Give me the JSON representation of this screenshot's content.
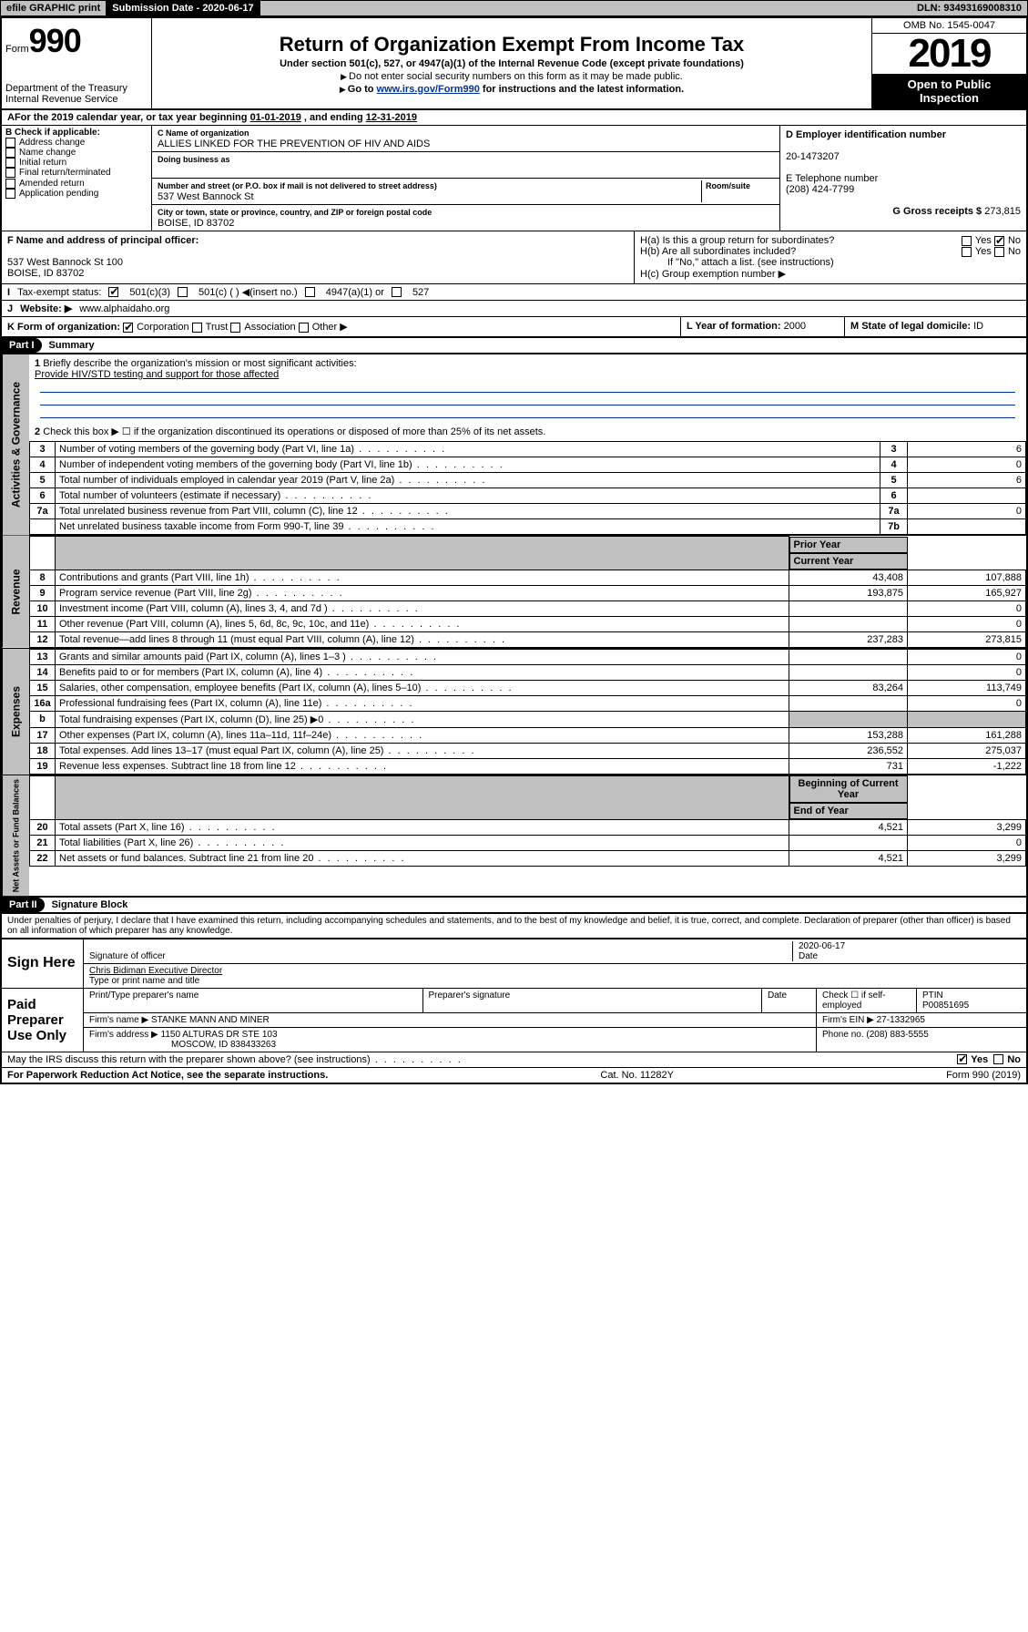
{
  "top": {
    "efile": "efile GRAPHIC print",
    "submission_label": "Submission Date - 2020-06-17",
    "dln": "DLN: 93493169008310"
  },
  "header": {
    "form_prefix": "Form",
    "form_no": "990",
    "dept": "Department of the Treasury",
    "irs": "Internal Revenue Service",
    "title": "Return of Organization Exempt From Income Tax",
    "subtitle": "Under section 501(c), 527, or 4947(a)(1) of the Internal Revenue Code (except private foundations)",
    "note1": "Do not enter social security numbers on this form as it may be made public.",
    "note2_pre": "Go to ",
    "note2_link": "www.irs.gov/Form990",
    "note2_post": " for instructions and the latest information.",
    "omb": "OMB No. 1545-0047",
    "year": "2019",
    "open1": "Open to Public",
    "open2": "Inspection"
  },
  "period": {
    "text_a": "For the 2019 calendar year, or tax year beginning ",
    "begin": "01-01-2019",
    "text_b": " , and ending ",
    "end": "12-31-2019"
  },
  "boxB": {
    "title": "B Check if applicable:",
    "opts": [
      "Address change",
      "Name change",
      "Initial return",
      "Final return/terminated",
      "Amended return",
      "Application pending"
    ]
  },
  "boxC": {
    "name_lbl": "C Name of organization",
    "name": "ALLIES LINKED FOR THE PREVENTION OF HIV AND AIDS",
    "dba_lbl": "Doing business as",
    "street_lbl": "Number and street (or P.O. box if mail is not delivered to street address)",
    "room_lbl": "Room/suite",
    "street": "537 West Bannock St",
    "city_lbl": "City or town, state or province, country, and ZIP or foreign postal code",
    "city": "BOISE, ID  83702"
  },
  "boxD": {
    "lbl": "D Employer identification number",
    "val": "20-1473207"
  },
  "boxE": {
    "lbl": "E Telephone number",
    "val": "(208) 424-7799"
  },
  "boxG": {
    "lbl": "G Gross receipts $",
    "val": "273,815"
  },
  "boxF": {
    "lbl": "F  Name and address of principal officer:",
    "line1": "537 West Bannock St 100",
    "line2": "BOISE, ID  83702"
  },
  "boxH": {
    "a_lbl": "H(a)  Is this a group return for subordinates?",
    "b_lbl": "H(b)  Are all subordinates included?",
    "b_note": "If \"No,\" attach a list. (see instructions)",
    "c_lbl": "H(c)  Group exemption number ▶",
    "yes": "Yes",
    "no": "No"
  },
  "boxI": {
    "lbl": "Tax-exempt status:",
    "o1": "501(c)(3)",
    "o2": "501(c) (  ) ◀(insert no.)",
    "o3": "4947(a)(1) or",
    "o4": "527"
  },
  "boxJ": {
    "lbl": "Website: ▶",
    "val": "www.alphaidaho.org"
  },
  "boxK": {
    "lbl": "K Form of organization:",
    "o1": "Corporation",
    "o2": "Trust",
    "o3": "Association",
    "o4": "Other ▶"
  },
  "boxL": {
    "lbl": "L Year of formation:",
    "val": "2000"
  },
  "boxM": {
    "lbl": "M State of legal domicile:",
    "val": "ID"
  },
  "part1": {
    "bar": "Part I",
    "title": "Summary"
  },
  "summary": {
    "q1": "Briefly describe the organization's mission or most significant activities:",
    "q1a": "Provide HIV/STD testing and support for those affected",
    "q2": "Check this box ▶ ☐  if the organization discontinued its operations or disposed of more than 25% of its net assets.",
    "rows_gov": [
      {
        "n": "3",
        "t": "Number of voting members of the governing body (Part VI, line 1a)",
        "b": "3",
        "v": "6"
      },
      {
        "n": "4",
        "t": "Number of independent voting members of the governing body (Part VI, line 1b)",
        "b": "4",
        "v": "0"
      },
      {
        "n": "5",
        "t": "Total number of individuals employed in calendar year 2019 (Part V, line 2a)",
        "b": "5",
        "v": "6"
      },
      {
        "n": "6",
        "t": "Total number of volunteers (estimate if necessary)",
        "b": "6",
        "v": ""
      },
      {
        "n": "7a",
        "t": "Total unrelated business revenue from Part VIII, column (C), line 12",
        "b": "7a",
        "v": "0"
      },
      {
        "n": "",
        "t": "Net unrelated business taxable income from Form 990-T, line 39",
        "b": "7b",
        "v": ""
      }
    ],
    "col_prior": "Prior Year",
    "col_curr": "Current Year",
    "col_begin": "Beginning of Current Year",
    "col_end": "End of Year",
    "rev": [
      {
        "n": "8",
        "t": "Contributions and grants (Part VIII, line 1h)",
        "p": "43,408",
        "c": "107,888"
      },
      {
        "n": "9",
        "t": "Program service revenue (Part VIII, line 2g)",
        "p": "193,875",
        "c": "165,927"
      },
      {
        "n": "10",
        "t": "Investment income (Part VIII, column (A), lines 3, 4, and 7d )",
        "p": "",
        "c": "0"
      },
      {
        "n": "11",
        "t": "Other revenue (Part VIII, column (A), lines 5, 6d, 8c, 9c, 10c, and 11e)",
        "p": "",
        "c": "0"
      },
      {
        "n": "12",
        "t": "Total revenue—add lines 8 through 11 (must equal Part VIII, column (A), line 12)",
        "p": "237,283",
        "c": "273,815"
      }
    ],
    "exp": [
      {
        "n": "13",
        "t": "Grants and similar amounts paid (Part IX, column (A), lines 1–3 )",
        "p": "",
        "c": "0"
      },
      {
        "n": "14",
        "t": "Benefits paid to or for members (Part IX, column (A), line 4)",
        "p": "",
        "c": "0"
      },
      {
        "n": "15",
        "t": "Salaries, other compensation, employee benefits (Part IX, column (A), lines 5–10)",
        "p": "83,264",
        "c": "113,749"
      },
      {
        "n": "16a",
        "t": "Professional fundraising fees (Part IX, column (A), line 11e)",
        "p": "",
        "c": "0"
      },
      {
        "n": "b",
        "t": "Total fundraising expenses (Part IX, column (D), line 25) ▶0",
        "p": "GRAY",
        "c": "GRAY"
      },
      {
        "n": "17",
        "t": "Other expenses (Part IX, column (A), lines 11a–11d, 11f–24e)",
        "p": "153,288",
        "c": "161,288"
      },
      {
        "n": "18",
        "t": "Total expenses. Add lines 13–17 (must equal Part IX, column (A), line 25)",
        "p": "236,552",
        "c": "275,037"
      },
      {
        "n": "19",
        "t": "Revenue less expenses. Subtract line 18 from line 12",
        "p": "731",
        "c": "-1,222"
      }
    ],
    "net": [
      {
        "n": "20",
        "t": "Total assets (Part X, line 16)",
        "p": "4,521",
        "c": "3,299"
      },
      {
        "n": "21",
        "t": "Total liabilities (Part X, line 26)",
        "p": "",
        "c": "0"
      },
      {
        "n": "22",
        "t": "Net assets or fund balances. Subtract line 21 from line 20",
        "p": "4,521",
        "c": "3,299"
      }
    ],
    "vert_gov": "Activities & Governance",
    "vert_rev": "Revenue",
    "vert_exp": "Expenses",
    "vert_net": "Net Assets or Fund Balances"
  },
  "part2": {
    "bar": "Part II",
    "title": "Signature Block"
  },
  "perjury": "Under penalties of perjury, I declare that I have examined this return, including accompanying schedules and statements, and to the best of my knowledge and belief, it is true, correct, and complete. Declaration of preparer (other than officer) is based on all information of which preparer has any knowledge.",
  "sign": {
    "here": "Sign Here",
    "sig_officer": "Signature of officer",
    "date_lbl": "Date",
    "date": "2020-06-17",
    "name": "Chris Bidiman  Executive Director",
    "name_lbl": "Type or print name and title"
  },
  "paid": {
    "lbl": "Paid Preparer Use Only",
    "c1": "Print/Type preparer's name",
    "c2": "Preparer's signature",
    "c3": "Date",
    "c4": "Check ☐ if self-employed",
    "c5": "PTIN",
    "ptin": "P00851695",
    "firm_lbl": "Firm's name    ▶",
    "firm": "STANKE MANN AND MINER",
    "ein_lbl": "Firm's EIN ▶",
    "ein": "27-1332965",
    "addr_lbl": "Firm's address ▶",
    "addr1": "1150 ALTURAS DR STE 103",
    "addr2": "MOSCOW, ID  838433263",
    "phone_lbl": "Phone no.",
    "phone": "(208) 883-5555"
  },
  "discuss": "May the IRS discuss this return with the preparer shown above? (see instructions)",
  "footer": {
    "pra": "For Paperwork Reduction Act Notice, see the separate instructions.",
    "cat": "Cat. No. 11282Y",
    "form": "Form 990 (2019)"
  }
}
